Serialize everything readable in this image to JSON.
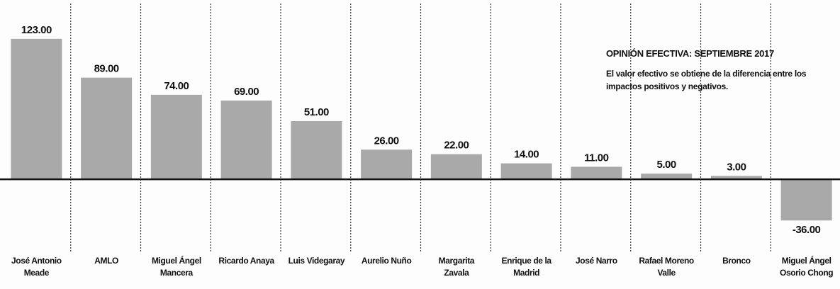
{
  "chart_data": {
    "type": "bar",
    "title": "OPINIÓN EFECTIVA: SEPTIEMBRE 2017",
    "subtitle": "El valor efectivo se obtiene de la diferencia entre los impactos positivos y negativos.",
    "categories": [
      "José Antonio Meade",
      "AMLO",
      "Miguel Ángel Mancera",
      "Ricardo Anaya",
      "Luis Videgaray",
      "Aurelio Nuño",
      "Margarita Zavala",
      "Enrique de la Madrid",
      "José Narro",
      "Rafael Moreno Valle",
      "Bronco",
      "Miguel Ángel Osorio Chong"
    ],
    "values": [
      123,
      89,
      74,
      69,
      51,
      26,
      22,
      14,
      11,
      5,
      3,
      -36
    ],
    "value_labels": [
      "123.00",
      "89.00",
      "74.00",
      "69.00",
      "51.00",
      "26.00",
      "22.00",
      "14.00",
      "11.00",
      "5.00",
      "3.00",
      "-36.00"
    ],
    "color": "#a9a9a9",
    "ylim": [
      -96,
      157
    ]
  }
}
